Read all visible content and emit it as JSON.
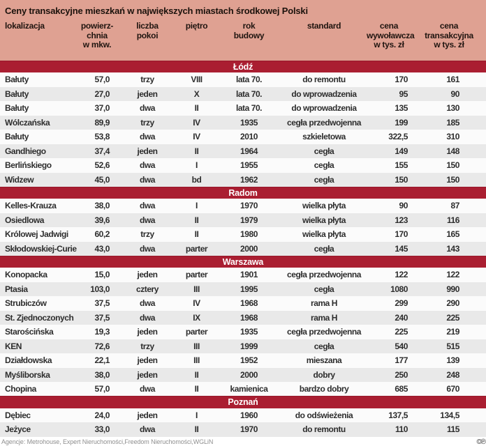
{
  "title": "Ceny transakcyjne mieszkań w największych miastach środkowej Polski",
  "colors": {
    "header_pink": "#dfa192",
    "section_red": "#aa1e31",
    "row_light": "#fbfbfb",
    "row_gray": "#e9e9e9",
    "section_text": "#ffffff"
  },
  "chart_data": {
    "type": "table",
    "title": "Ceny transakcyjne mieszkań w największych miastach środkowej Polski",
    "columns": [
      {
        "key": "lokalizacja",
        "label": "lokalizacja"
      },
      {
        "key": "powierzchnia",
        "label": "powierz-\nchnia\nw mkw."
      },
      {
        "key": "liczba_pokoi",
        "label": "liczba\npokoi"
      },
      {
        "key": "pietro",
        "label": "piętro"
      },
      {
        "key": "rok_budowy",
        "label": "rok\nbudowy"
      },
      {
        "key": "standard",
        "label": "standard"
      },
      {
        "key": "cena_wywolawcza",
        "label": "cena\nwywoławcza\nw tys. zł"
      },
      {
        "key": "cena_transakcyjna",
        "label": "cena\ntransakcyjna\nw tys. zł"
      }
    ],
    "sections": [
      {
        "name": "Łódź",
        "rows": [
          [
            "Bałuty",
            "57,0",
            "trzy",
            "VIII",
            "lata 70.",
            "do remontu",
            "170",
            "161"
          ],
          [
            "Bałuty",
            "27,0",
            "jeden",
            "X",
            "lata 70.",
            "do wprowadzenia",
            "95",
            "90"
          ],
          [
            "Bałuty",
            "37,0",
            "dwa",
            "II",
            "lata 70.",
            "do wprowadzenia",
            "135",
            "130"
          ],
          [
            "Wólczańska",
            "89,9",
            "trzy",
            "IV",
            "1935",
            "cegła przedwojenna",
            "199",
            "185"
          ],
          [
            "Bałuty",
            "53,8",
            "dwa",
            "IV",
            "2010",
            "szkieletowa",
            "322,5",
            "310"
          ],
          [
            "Gandhiego",
            "37,4",
            "jeden",
            "II",
            "1964",
            "cegła",
            "149",
            "148"
          ],
          [
            "Berlińskiego",
            "52,6",
            "dwa",
            "I",
            "1955",
            "cegła",
            "155",
            "150"
          ],
          [
            "Widzew",
            "45,0",
            "dwa",
            "bd",
            "1962",
            "cegła",
            "150",
            "150"
          ]
        ]
      },
      {
        "name": "Radom",
        "rows": [
          [
            "Kelles-Krauza",
            "38,0",
            "dwa",
            "I",
            "1970",
            "wielka płyta",
            "90",
            "87"
          ],
          [
            "Osiedlowa",
            "39,6",
            "dwa",
            "II",
            "1979",
            "wielka płyta",
            "123",
            "116"
          ],
          [
            "Królowej Jadwigi",
            "60,2",
            "trzy",
            "II",
            "1980",
            "wielka płyta",
            "170",
            "165"
          ],
          [
            "Skłodowskiej-Curie",
            "43,0",
            "dwa",
            "parter",
            "2000",
            "cegła",
            "145",
            "143"
          ]
        ]
      },
      {
        "name": "Warszawa",
        "rows": [
          [
            "Konopacka",
            "15,0",
            "jeden",
            "parter",
            "1901",
            "cegła przedwojenna",
            "122",
            "122"
          ],
          [
            "Ptasia",
            "103,0",
            "cztery",
            "III",
            "1995",
            "cegła",
            "1080",
            "990"
          ],
          [
            "Strubiczów",
            "37,5",
            "dwa",
            "IV",
            "1968",
            "rama H",
            "299",
            "290"
          ],
          [
            "St. Zjednoczonych",
            "37,5",
            "dwa",
            "IX",
            "1968",
            "rama H",
            "240",
            "225"
          ],
          [
            "Starościńska",
            "19,3",
            "jeden",
            "parter",
            "1935",
            "cegła przedwojenna",
            "225",
            "219"
          ],
          [
            "KEN",
            "72,6",
            "trzy",
            "III",
            "1999",
            "cegła",
            "540",
            "515"
          ],
          [
            "Działdowska",
            "22,1",
            "jeden",
            "III",
            "1952",
            "mieszana",
            "177",
            "139"
          ],
          [
            "Myśliborska",
            "38,0",
            "jeden",
            "II",
            "2000",
            "dobry",
            "250",
            "248"
          ],
          [
            "Chopina",
            "57,0",
            "dwa",
            "II",
            "kamienica",
            "bardzo dobry",
            "685",
            "670"
          ]
        ]
      },
      {
        "name": "Poznań",
        "rows": [
          [
            "Dębiec",
            "24,0",
            "jeden",
            "I",
            "1960",
            "do odświeżenia",
            "137,5",
            "134,5"
          ],
          [
            "Jeżyce",
            "33,0",
            "dwa",
            "II",
            "1970",
            "do remontu",
            "110",
            "115"
          ]
        ]
      }
    ]
  },
  "footer": {
    "source": "Agencje: Metrohouse, Expert Nieruchomości,Freedom Nieruchomości,WGLiN",
    "copyright": "©℗"
  }
}
